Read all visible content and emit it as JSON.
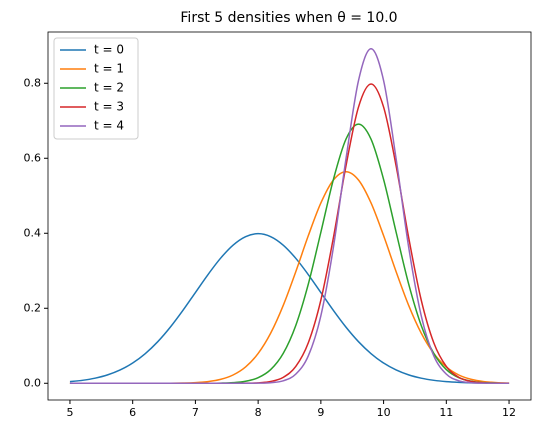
{
  "chart_data": {
    "type": "line",
    "title": "First 5 densities when θ = 10.0",
    "x": [
      5.0,
      5.2,
      5.4,
      5.6,
      5.8,
      6.0,
      6.2,
      6.4,
      6.6,
      6.8,
      7.0,
      7.2,
      7.4,
      7.6,
      7.8,
      8.0,
      8.2,
      8.4,
      8.6,
      8.8,
      9.0,
      9.2,
      9.4,
      9.6,
      9.8,
      10.0,
      10.2,
      10.4,
      10.6,
      10.8,
      11.0,
      11.2,
      11.4,
      11.6,
      11.8,
      12.0
    ],
    "series": [
      {
        "name": "t = 0",
        "color": "#1f77b4",
        "values": [
          0.0044,
          0.0079,
          0.0136,
          0.0224,
          0.0355,
          0.054,
          0.079,
          0.1109,
          0.1497,
          0.1942,
          0.242,
          0.2897,
          0.3332,
          0.3683,
          0.391,
          0.3989,
          0.391,
          0.3683,
          0.3332,
          0.2897,
          0.242,
          0.1942,
          0.1497,
          0.1109,
          0.079,
          0.054,
          0.0355,
          0.0224,
          0.0136,
          0.0079,
          0.0044,
          0.0024,
          0.0012,
          0.0006,
          0.0003,
          0.0001
        ]
      },
      {
        "name": "t = 1",
        "color": "#ff7f0e",
        "values": [
          0,
          0,
          0,
          0,
          0,
          0,
          0,
          0.0001,
          0.0002,
          0.0007,
          0.0018,
          0.0045,
          0.0103,
          0.0221,
          0.0436,
          0.0795,
          0.1337,
          0.2076,
          0.2975,
          0.3936,
          0.4808,
          0.5421,
          0.5642,
          0.5421,
          0.4808,
          0.3936,
          0.2975,
          0.2076,
          0.1337,
          0.0795,
          0.0436,
          0.0221,
          0.0103,
          0.0045,
          0.0018,
          0.0007
        ]
      },
      {
        "name": "t = 2",
        "color": "#2ca02c",
        "values": [
          0,
          0,
          0,
          0,
          0,
          0,
          0,
          0,
          0,
          0,
          0,
          0.0001,
          0.0005,
          0.0017,
          0.0054,
          0.0148,
          0.0365,
          0.0797,
          0.1542,
          0.2646,
          0.4027,
          0.5436,
          0.6508,
          0.691,
          0.6508,
          0.5436,
          0.4027,
          0.2646,
          0.1542,
          0.0797,
          0.0365,
          0.0148,
          0.0054,
          0.0017,
          0.0005,
          0.0001
        ]
      },
      {
        "name": "t = 3",
        "color": "#d62728",
        "values": [
          0,
          0,
          0,
          0,
          0,
          0,
          0,
          0,
          0,
          0,
          0,
          0,
          0,
          0,
          0.0003,
          0.0012,
          0.0048,
          0.0158,
          0.0448,
          0.108,
          0.2218,
          0.3884,
          0.5794,
          0.7365,
          0.7979,
          0.7365,
          0.5794,
          0.3884,
          0.2218,
          0.108,
          0.0448,
          0.0158,
          0.0048,
          0.0012,
          0.0003,
          0
        ]
      },
      {
        "name": "t = 4",
        "color": "#9467bd",
        "values": [
          0,
          0,
          0,
          0,
          0,
          0,
          0,
          0,
          0,
          0,
          0,
          0,
          0,
          0,
          0,
          0.0003,
          0.0015,
          0.0066,
          0.0244,
          0.0732,
          0.1801,
          0.3627,
          0.598,
          0.8072,
          0.8921,
          0.8072,
          0.598,
          0.3627,
          0.1801,
          0.0732,
          0.0244,
          0.0066,
          0.0015,
          0.0003,
          0,
          0
        ]
      }
    ],
    "xlim": [
      4.65,
      12.35
    ],
    "xticks": [
      5,
      6,
      7,
      8,
      9,
      10,
      11,
      12
    ],
    "ylim": [
      -0.0446,
      0.9367
    ],
    "yticks": [
      {
        "value": 0,
        "label": "0.0"
      },
      0.2,
      0.4,
      0.6,
      0.8
    ],
    "grid": false,
    "legend": "upper left"
  }
}
